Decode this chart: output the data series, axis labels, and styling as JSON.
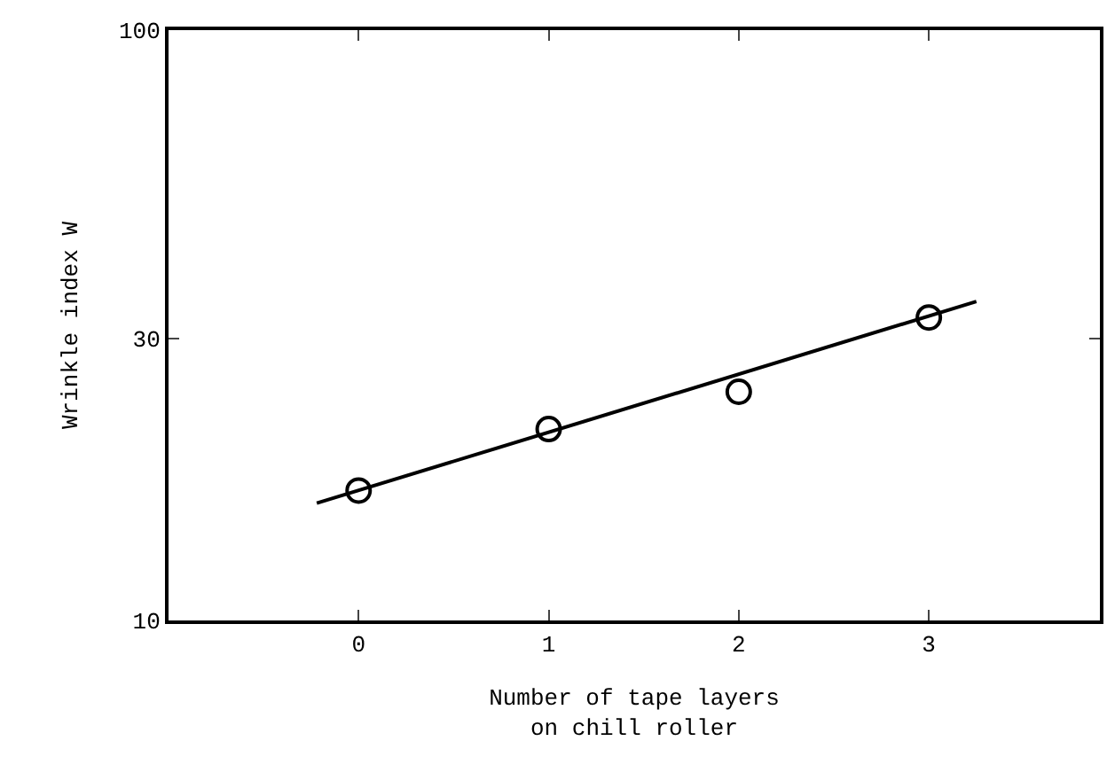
{
  "chart_data": {
    "type": "scatter",
    "xlabel": "Number of tape layers\non chill roller",
    "ylabel": "Wrinkle index W",
    "xlim": [
      -1,
      3.9
    ],
    "xticks": [
      0,
      1,
      2,
      3
    ],
    "ylim": [
      10,
      100
    ],
    "yticks": [
      10,
      30,
      100
    ],
    "log": "y",
    "grid": false,
    "series": [
      {
        "marker": "circle",
        "color": "#000000",
        "x": [
          0,
          1,
          2,
          3
        ],
        "values": [
          16.6,
          21.1,
          24.4,
          32.6
        ]
      },
      {
        "type": "line",
        "marker": "none",
        "color": "#000000",
        "x": [
          -0.22,
          3.25
        ],
        "values": [
          15.8,
          34.7
        ],
        "line_style": "solid"
      }
    ]
  }
}
